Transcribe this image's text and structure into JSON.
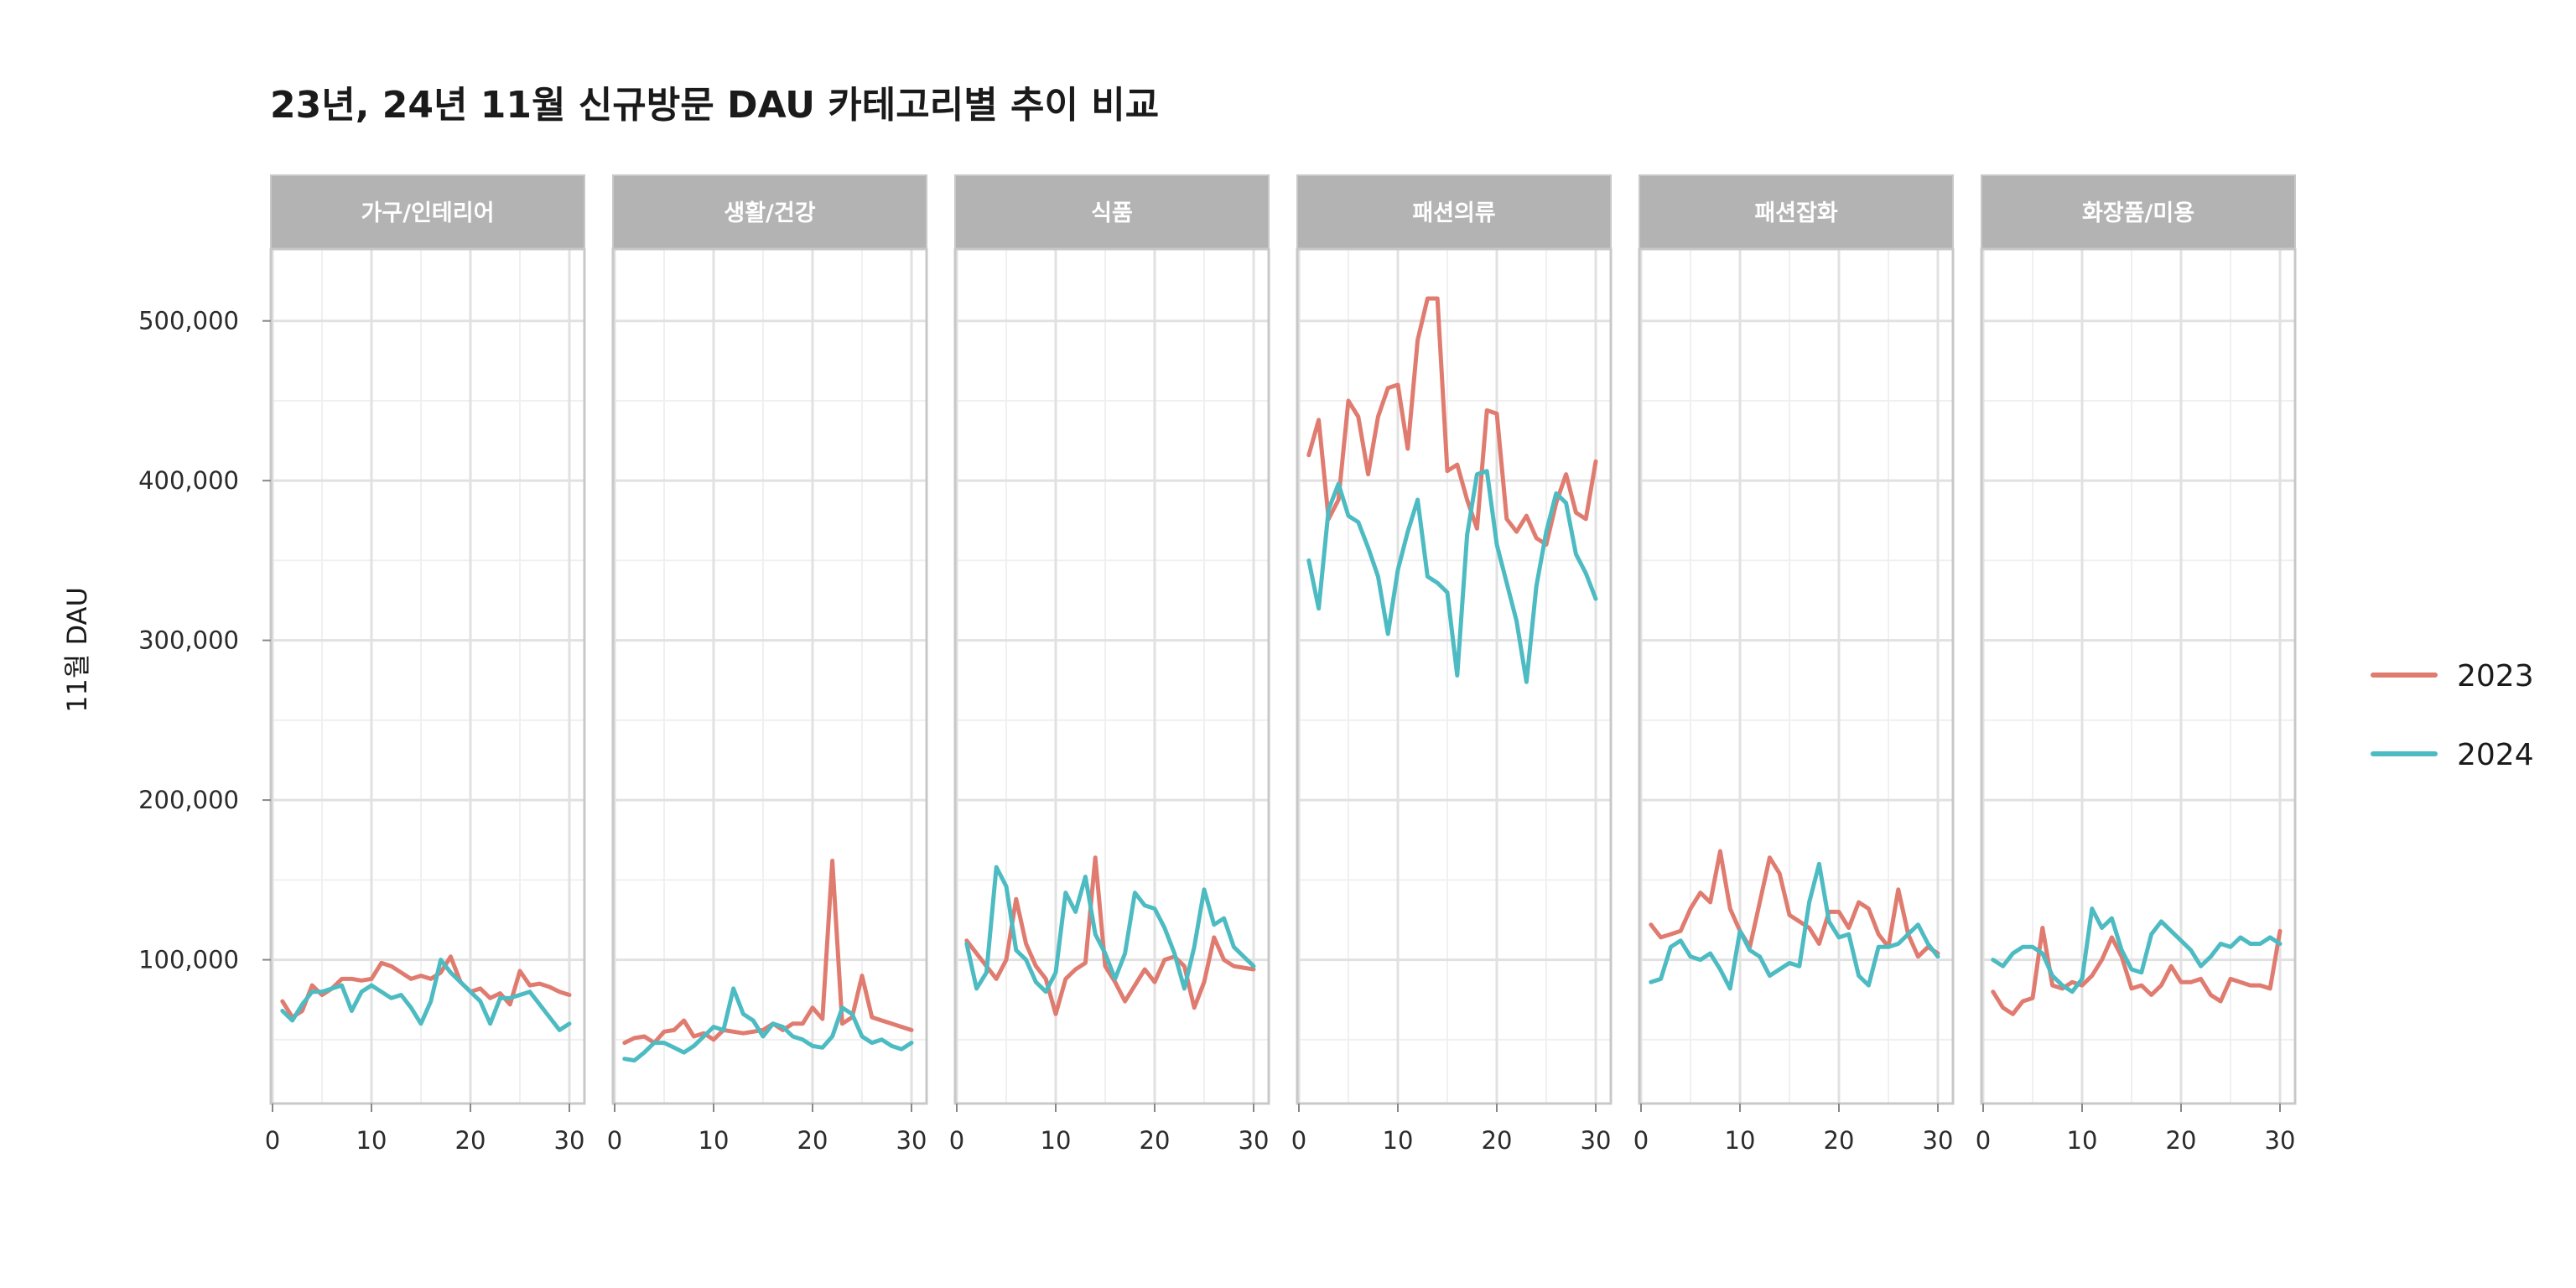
{
  "chart_data": {
    "type": "line",
    "title": "23년, 24년 11월 신규방문 DAU 카테고리별 추이 비교",
    "xlabel": "",
    "ylabel": "11월 DAU",
    "xlim": [
      0,
      30
    ],
    "ylim": [
      10000,
      545000
    ],
    "x_ticks": [
      0,
      10,
      20,
      30
    ],
    "y_ticks": [
      100000,
      200000,
      300000,
      400000,
      500000
    ],
    "y_tick_labels": [
      "100,000",
      "200,000",
      "300,000",
      "400,000",
      "500,000"
    ],
    "grid": true,
    "legend_position": "right",
    "x": [
      1,
      2,
      3,
      4,
      5,
      6,
      7,
      8,
      9,
      10,
      11,
      12,
      13,
      14,
      15,
      16,
      17,
      18,
      19,
      20,
      21,
      22,
      23,
      24,
      25,
      26,
      27,
      28,
      29,
      30
    ],
    "colors": {
      "2023": "#E07B70",
      "2024": "#4DBBC2"
    },
    "panels": [
      {
        "category": "가구/인테리어",
        "series": [
          {
            "name": "2023",
            "values": [
              74000,
              64000,
              68000,
              84000,
              78000,
              82000,
              88000,
              88000,
              87000,
              88000,
              98000,
              96000,
              92000,
              88000,
              90000,
              88000,
              92000,
              102000,
              86000,
              80000,
              82000,
              76000,
              79000,
              72000,
              93000,
              84000,
              85000,
              83000,
              80000,
              78000
            ]
          },
          {
            "name": "2024",
            "values": [
              68000,
              62000,
              72000,
              80000,
              80000,
              82000,
              84000,
              68000,
              80000,
              84000,
              80000,
              76000,
              78000,
              70000,
              60000,
              74000,
              100000,
              92000,
              86000,
              80000,
              74000,
              60000,
              76000,
              76000,
              78000,
              80000,
              72000,
              64000,
              56000,
              60000
            ]
          }
        ]
      },
      {
        "category": "생활/건강",
        "series": [
          {
            "name": "2023",
            "values": [
              48000,
              51000,
              52000,
              48000,
              55000,
              56000,
              62000,
              52000,
              54000,
              50000,
              56000,
              55000,
              54000,
              55000,
              56000,
              60000,
              56000,
              60000,
              60000,
              70000,
              63000,
              162000,
              60000,
              64000,
              90000,
              64000,
              62000,
              60000,
              58000,
              56000
            ]
          },
          {
            "name": "2024",
            "values": [
              38000,
              37000,
              42000,
              48000,
              48000,
              45000,
              42000,
              46000,
              52000,
              58000,
              56000,
              82000,
              66000,
              62000,
              52000,
              60000,
              58000,
              52000,
              50000,
              46000,
              45000,
              52000,
              70000,
              66000,
              52000,
              48000,
              50000,
              46000,
              44000,
              48000
            ]
          }
        ]
      },
      {
        "category": "식품",
        "series": [
          {
            "name": "2023",
            "values": [
              112000,
              104000,
              96000,
              88000,
              100000,
              138000,
              110000,
              96000,
              88000,
              66000,
              88000,
              94000,
              98000,
              164000,
              96000,
              86000,
              74000,
              84000,
              94000,
              86000,
              100000,
              102000,
              96000,
              70000,
              86000,
              114000,
              100000,
              96000,
              95000,
              94000
            ]
          },
          {
            "name": "2024",
            "values": [
              110000,
              82000,
              92000,
              158000,
              146000,
              106000,
              100000,
              86000,
              80000,
              92000,
              142000,
              130000,
              152000,
              116000,
              104000,
              88000,
              104000,
              142000,
              134000,
              132000,
              120000,
              104000,
              82000,
              108000,
              144000,
              122000,
              126000,
              108000,
              102000,
              96000
            ]
          }
        ]
      },
      {
        "category": "패션의류",
        "series": [
          {
            "name": "2023",
            "values": [
              416000,
              438000,
              376000,
              388000,
              450000,
              440000,
              404000,
              440000,
              458000,
              460000,
              420000,
              488000,
              514000,
              514000,
              406000,
              410000,
              388000,
              370000,
              444000,
              442000,
              376000,
              368000,
              378000,
              364000,
              360000,
              386000,
              404000,
              380000,
              376000,
              412000
            ]
          },
          {
            "name": "2024",
            "values": [
              350000,
              320000,
              382000,
              398000,
              378000,
              374000,
              358000,
              340000,
              304000,
              344000,
              368000,
              388000,
              340000,
              336000,
              330000,
              278000,
              366000,
              404000,
              406000,
              360000,
              336000,
              312000,
              274000,
              334000,
              368000,
              392000,
              386000,
              354000,
              342000,
              326000
            ]
          }
        ]
      },
      {
        "category": "패션잡화",
        "series": [
          {
            "name": "2023",
            "values": [
              122000,
              114000,
              116000,
              118000,
              132000,
              142000,
              136000,
              168000,
              132000,
              118000,
              108000,
              136000,
              164000,
              154000,
              128000,
              124000,
              120000,
              110000,
              130000,
              130000,
              120000,
              136000,
              132000,
              116000,
              108000,
              144000,
              116000,
              102000,
              108000,
              104000
            ]
          },
          {
            "name": "2024",
            "values": [
              86000,
              88000,
              108000,
              112000,
              102000,
              100000,
              104000,
              94000,
              82000,
              118000,
              106000,
              102000,
              90000,
              94000,
              98000,
              96000,
              136000,
              160000,
              124000,
              114000,
              116000,
              90000,
              84000,
              108000,
              108000,
              110000,
              116000,
              122000,
              110000,
              102000
            ]
          }
        ]
      },
      {
        "category": "화장품/미용",
        "series": [
          {
            "name": "2023",
            "values": [
              80000,
              70000,
              66000,
              74000,
              76000,
              120000,
              84000,
              82000,
              86000,
              84000,
              90000,
              100000,
              114000,
              102000,
              82000,
              84000,
              78000,
              84000,
              96000,
              86000,
              86000,
              88000,
              78000,
              74000,
              88000,
              86000,
              84000,
              84000,
              82000,
              118000
            ]
          },
          {
            "name": "2024",
            "values": [
              100000,
              96000,
              104000,
              108000,
              108000,
              104000,
              90000,
              84000,
              80000,
              88000,
              132000,
              120000,
              126000,
              106000,
              94000,
              92000,
              116000,
              124000,
              118000,
              112000,
              106000,
              96000,
              102000,
              110000,
              108000,
              114000,
              110000,
              110000,
              114000,
              110000
            ]
          }
        ]
      }
    ]
  }
}
